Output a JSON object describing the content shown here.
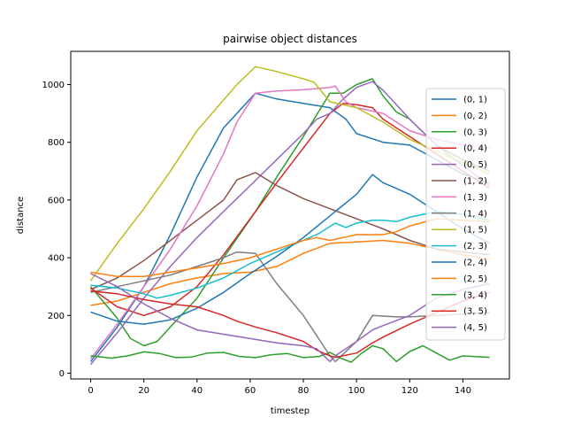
{
  "chart_data": {
    "type": "line",
    "title": "pairwise object distances",
    "xlabel": "timestep",
    "ylabel": "distance",
    "xlim": [
      -7.5,
      157.5
    ],
    "ylim": [
      -20,
      1115
    ],
    "xticks": [
      0,
      20,
      40,
      60,
      80,
      100,
      120,
      140
    ],
    "yticks": [
      0,
      200,
      400,
      600,
      800,
      1000
    ],
    "grid": false,
    "legend": "right",
    "series": [
      {
        "name": "(0, 1)",
        "color": "#1f77b4",
        "points": [
          [
            0,
            40
          ],
          [
            10,
            160
          ],
          [
            20,
            300
          ],
          [
            30,
            480
          ],
          [
            40,
            680
          ],
          [
            50,
            850
          ],
          [
            62,
            970
          ],
          [
            70,
            950
          ],
          [
            80,
            935
          ],
          [
            90,
            920
          ],
          [
            96,
            880
          ],
          [
            100,
            830
          ],
          [
            110,
            800
          ],
          [
            120,
            790
          ],
          [
            130,
            740
          ],
          [
            140,
            690
          ],
          [
            150,
            660
          ]
        ]
      },
      {
        "name": "(0, 2)",
        "color": "#ff7f0e",
        "points": [
          [
            0,
            235
          ],
          [
            10,
            250
          ],
          [
            20,
            280
          ],
          [
            30,
            310
          ],
          [
            40,
            330
          ],
          [
            50,
            345
          ],
          [
            60,
            350
          ],
          [
            70,
            370
          ],
          [
            80,
            415
          ],
          [
            90,
            450
          ],
          [
            100,
            455
          ],
          [
            110,
            460
          ],
          [
            120,
            450
          ],
          [
            130,
            430
          ],
          [
            140,
            410
          ],
          [
            150,
            395
          ]
        ]
      },
      {
        "name": "(0, 3)",
        "color": "#2ca02c",
        "points": [
          [
            0,
            300
          ],
          [
            10,
            190
          ],
          [
            15,
            120
          ],
          [
            20,
            95
          ],
          [
            25,
            110
          ],
          [
            30,
            160
          ],
          [
            40,
            260
          ],
          [
            50,
            400
          ],
          [
            62,
            560
          ],
          [
            70,
            680
          ],
          [
            80,
            820
          ],
          [
            90,
            970
          ],
          [
            95,
            970
          ],
          [
            100,
            1000
          ],
          [
            106,
            1020
          ],
          [
            110,
            960
          ],
          [
            115,
            905
          ],
          [
            120,
            880
          ],
          [
            130,
            790
          ],
          [
            140,
            740
          ],
          [
            150,
            700
          ]
        ]
      },
      {
        "name": "(0, 4)",
        "color": "#d62728",
        "points": [
          [
            0,
            295
          ],
          [
            10,
            230
          ],
          [
            20,
            200
          ],
          [
            30,
            230
          ],
          [
            40,
            300
          ],
          [
            50,
            410
          ],
          [
            62,
            560
          ],
          [
            70,
            660
          ],
          [
            80,
            780
          ],
          [
            90,
            900
          ],
          [
            95,
            935
          ],
          [
            100,
            930
          ],
          [
            106,
            920
          ],
          [
            110,
            880
          ],
          [
            120,
            820
          ],
          [
            130,
            760
          ],
          [
            140,
            700
          ],
          [
            150,
            640
          ]
        ]
      },
      {
        "name": "(0, 5)",
        "color": "#9467bd",
        "points": [
          [
            0,
            30
          ],
          [
            10,
            140
          ],
          [
            20,
            260
          ],
          [
            30,
            370
          ],
          [
            40,
            470
          ],
          [
            50,
            560
          ],
          [
            60,
            650
          ],
          [
            70,
            740
          ],
          [
            80,
            830
          ],
          [
            85,
            880
          ],
          [
            90,
            900
          ],
          [
            95,
            950
          ],
          [
            100,
            990
          ],
          [
            106,
            1010
          ],
          [
            110,
            980
          ],
          [
            120,
            880
          ],
          [
            130,
            790
          ],
          [
            140,
            720
          ],
          [
            150,
            650
          ]
        ]
      },
      {
        "name": "(1, 2)",
        "color": "#8c564b",
        "points": [
          [
            0,
            290
          ],
          [
            10,
            330
          ],
          [
            20,
            390
          ],
          [
            30,
            460
          ],
          [
            40,
            530
          ],
          [
            50,
            600
          ],
          [
            55,
            670
          ],
          [
            62,
            695
          ],
          [
            70,
            650
          ],
          [
            80,
            605
          ],
          [
            90,
            570
          ],
          [
            100,
            535
          ],
          [
            110,
            500
          ],
          [
            120,
            460
          ],
          [
            130,
            430
          ],
          [
            140,
            420
          ],
          [
            150,
            410
          ]
        ]
      },
      {
        "name": "(1, 3)",
        "color": "#e377c2",
        "points": [
          [
            0,
            50
          ],
          [
            10,
            170
          ],
          [
            20,
            300
          ],
          [
            30,
            430
          ],
          [
            40,
            580
          ],
          [
            50,
            760
          ],
          [
            55,
            870
          ],
          [
            62,
            970
          ],
          [
            70,
            978
          ],
          [
            80,
            982
          ],
          [
            90,
            990
          ],
          [
            92,
            995
          ],
          [
            96,
            940
          ],
          [
            100,
            920
          ],
          [
            110,
            900
          ],
          [
            120,
            840
          ],
          [
            130,
            810
          ],
          [
            140,
            790
          ],
          [
            150,
            780
          ]
        ]
      },
      {
        "name": "(1, 4)",
        "color": "#7f7f7f",
        "points": [
          [
            0,
            280
          ],
          [
            10,
            300
          ],
          [
            20,
            320
          ],
          [
            30,
            340
          ],
          [
            40,
            370
          ],
          [
            50,
            400
          ],
          [
            55,
            420
          ],
          [
            62,
            415
          ],
          [
            70,
            310
          ],
          [
            80,
            200
          ],
          [
            85,
            130
          ],
          [
            90,
            60
          ],
          [
            92,
            40
          ],
          [
            100,
            110
          ],
          [
            106,
            200
          ],
          [
            115,
            195
          ],
          [
            120,
            195
          ],
          [
            130,
            200
          ],
          [
            140,
            205
          ],
          [
            150,
            210
          ]
        ]
      },
      {
        "name": "(1, 5)",
        "color": "#bcbd22",
        "points": [
          [
            0,
            320
          ],
          [
            10,
            450
          ],
          [
            20,
            570
          ],
          [
            30,
            700
          ],
          [
            40,
            840
          ],
          [
            55,
            1000
          ],
          [
            62,
            1062
          ],
          [
            70,
            1045
          ],
          [
            80,
            1020
          ],
          [
            84,
            1008
          ],
          [
            90,
            940
          ],
          [
            100,
            920
          ],
          [
            110,
            870
          ],
          [
            120,
            810
          ],
          [
            130,
            770
          ],
          [
            140,
            730
          ],
          [
            150,
            690
          ]
        ]
      },
      {
        "name": "(2, 3)",
        "color": "#17becf",
        "points": [
          [
            0,
            305
          ],
          [
            10,
            295
          ],
          [
            20,
            275
          ],
          [
            25,
            260
          ],
          [
            30,
            270
          ],
          [
            40,
            295
          ],
          [
            50,
            330
          ],
          [
            60,
            380
          ],
          [
            70,
            420
          ],
          [
            80,
            460
          ],
          [
            86,
            485
          ],
          [
            92,
            520
          ],
          [
            96,
            505
          ],
          [
            100,
            520
          ],
          [
            106,
            530
          ],
          [
            110,
            530
          ],
          [
            115,
            525
          ],
          [
            120,
            540
          ],
          [
            130,
            560
          ],
          [
            140,
            550
          ],
          [
            150,
            530
          ]
        ]
      },
      {
        "name": "(2, 4)",
        "color": "#1f77b4",
        "points": [
          [
            0,
            212
          ],
          [
            10,
            180
          ],
          [
            20,
            170
          ],
          [
            30,
            185
          ],
          [
            40,
            225
          ],
          [
            50,
            280
          ],
          [
            60,
            345
          ],
          [
            70,
            405
          ],
          [
            80,
            470
          ],
          [
            90,
            545
          ],
          [
            100,
            620
          ],
          [
            106,
            688
          ],
          [
            110,
            660
          ],
          [
            120,
            620
          ],
          [
            130,
            560
          ],
          [
            140,
            500
          ],
          [
            150,
            450
          ]
        ]
      },
      {
        "name": "(2, 5)",
        "color": "#ff7f0e",
        "points": [
          [
            0,
            350
          ],
          [
            10,
            335
          ],
          [
            20,
            335
          ],
          [
            30,
            350
          ],
          [
            40,
            365
          ],
          [
            50,
            380
          ],
          [
            60,
            400
          ],
          [
            70,
            430
          ],
          [
            80,
            460
          ],
          [
            85,
            470
          ],
          [
            90,
            460
          ],
          [
            95,
            470
          ],
          [
            100,
            480
          ],
          [
            110,
            480
          ],
          [
            115,
            490
          ],
          [
            120,
            510
          ],
          [
            130,
            535
          ],
          [
            140,
            530
          ],
          [
            150,
            525
          ]
        ]
      },
      {
        "name": "(3, 4)",
        "color": "#2ca02c",
        "points": [
          [
            0,
            60
          ],
          [
            8,
            52
          ],
          [
            14,
            60
          ],
          [
            20,
            74
          ],
          [
            26,
            68
          ],
          [
            32,
            54
          ],
          [
            38,
            56
          ],
          [
            44,
            70
          ],
          [
            50,
            72
          ],
          [
            56,
            58
          ],
          [
            62,
            54
          ],
          [
            68,
            64
          ],
          [
            74,
            68
          ],
          [
            80,
            54
          ],
          [
            86,
            58
          ],
          [
            90,
            72
          ],
          [
            94,
            52
          ],
          [
            98,
            38
          ],
          [
            102,
            70
          ],
          [
            106,
            95
          ],
          [
            110,
            85
          ],
          [
            115,
            40
          ],
          [
            120,
            75
          ],
          [
            125,
            95
          ],
          [
            130,
            70
          ],
          [
            135,
            45
          ],
          [
            140,
            60
          ],
          [
            150,
            55
          ]
        ]
      },
      {
        "name": "(3, 5)",
        "color": "#d62728",
        "points": [
          [
            0,
            285
          ],
          [
            10,
            275
          ],
          [
            20,
            255
          ],
          [
            30,
            240
          ],
          [
            40,
            230
          ],
          [
            50,
            200
          ],
          [
            55,
            180
          ],
          [
            62,
            160
          ],
          [
            70,
            140
          ],
          [
            80,
            110
          ],
          [
            85,
            80
          ],
          [
            90,
            60
          ],
          [
            92,
            55
          ],
          [
            100,
            70
          ],
          [
            106,
            105
          ],
          [
            110,
            125
          ],
          [
            120,
            170
          ],
          [
            130,
            210
          ],
          [
            140,
            250
          ],
          [
            150,
            280
          ]
        ]
      },
      {
        "name": "(4, 5)",
        "color": "#9467bd",
        "points": [
          [
            0,
            345
          ],
          [
            10,
            300
          ],
          [
            20,
            240
          ],
          [
            30,
            190
          ],
          [
            40,
            150
          ],
          [
            50,
            135
          ],
          [
            60,
            120
          ],
          [
            70,
            105
          ],
          [
            80,
            95
          ],
          [
            85,
            85
          ],
          [
            90,
            40
          ],
          [
            92,
            60
          ],
          [
            100,
            110
          ],
          [
            106,
            150
          ],
          [
            110,
            165
          ],
          [
            120,
            200
          ],
          [
            130,
            260
          ],
          [
            140,
            290
          ],
          [
            150,
            310
          ]
        ]
      }
    ]
  }
}
